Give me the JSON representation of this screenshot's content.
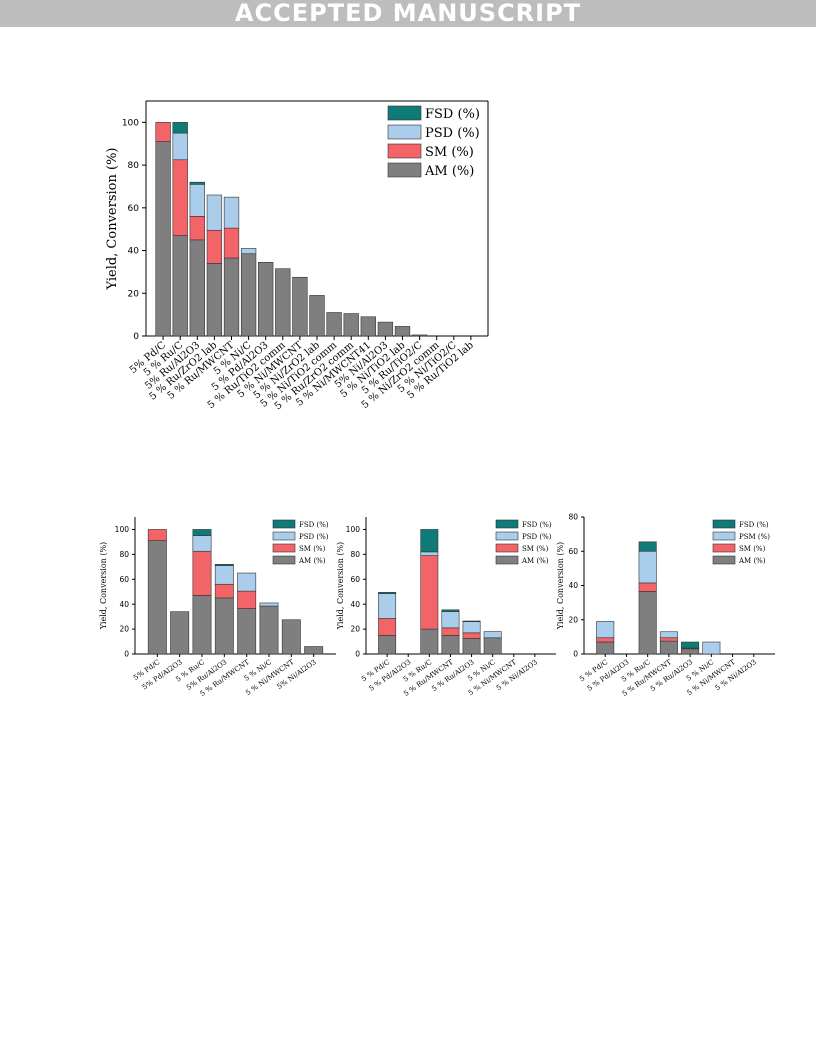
{
  "header": {
    "banner": "ACCEPTED MANUSCRIPT"
  },
  "colors": {
    "FSD": "#0e7b78",
    "PSD": "#a9cdea",
    "SM": "#f26468",
    "AM": "#7f7f7f"
  },
  "chart_data": [
    {
      "type": "bar",
      "stacked": true,
      "ylabel": "Yield, Conversion (%)",
      "ylim": [
        0,
        110
      ],
      "yticks": [
        "0",
        "20",
        "40",
        "60",
        "80",
        "100"
      ],
      "legend_position": "top-right",
      "categories": [
        "5% Pd/C",
        "5 % Ru/C",
        "5% Ru/Al2O3",
        "5 % Ru/ZrO2 lab",
        "5 % Ru/MWCNT",
        "5 % Ni/C",
        "5 % Pd/Al2O3",
        "5 % Ru/TiO2 comm",
        "5 % Ni/MWCNT",
        "5 % Ni/ZrO2 lab",
        "5 % Ni/TiO2 comm",
        "5 % Ru/ZrO2 comm",
        "5 % Ni/MWCNT41",
        "5% Ni/Al2O3",
        "5 % Ni/TiO2 lab",
        "5 % Ru/TiO2/C",
        "5 % Ni/ZrO2 comm",
        "5 % Ni/TiO2/C",
        "5 % Ru/TiO2 lab"
      ],
      "series": [
        {
          "name": "AM (%)",
          "values": [
            91,
            47,
            45,
            34,
            36.5,
            38.5,
            34.5,
            31.5,
            27.5,
            19,
            11,
            10.5,
            9,
            6.5,
            4.5,
            0.5,
            0,
            0,
            0
          ]
        },
        {
          "name": "SM (%)",
          "values": [
            9,
            35.5,
            11,
            15.5,
            14,
            0,
            0,
            0,
            0,
            0,
            0,
            0,
            0,
            0,
            0,
            0,
            0,
            0,
            0
          ]
        },
        {
          "name": "PSD (%)",
          "values": [
            0,
            12.5,
            15,
            16.5,
            14.5,
            2.5,
            0,
            0,
            0,
            0,
            0,
            0,
            0,
            0,
            0,
            0,
            0,
            0,
            0
          ]
        },
        {
          "name": "FSD (%)",
          "values": [
            0,
            5,
            1,
            0,
            0,
            0,
            0,
            0,
            0,
            0,
            0,
            0,
            0,
            0,
            0,
            0,
            0,
            0,
            0
          ]
        }
      ]
    },
    {
      "type": "bar",
      "stacked": true,
      "ylabel": "Yield, Conversion (%)",
      "ylim": [
        0,
        110
      ],
      "yticks": [
        "0",
        "20",
        "40",
        "60",
        "80",
        "100"
      ],
      "legend_position": "top-right",
      "categories": [
        "5% Pd/C",
        "5% Pd/Al2O3",
        "5 % Ru/C",
        "5% Ru/Al2O3",
        "5 % Ru/MWCNT",
        "5 % Ni/C",
        "5 % Ni/MWCNT",
        "5% Ni/Al2O3"
      ],
      "series": [
        {
          "name": "AM (%)",
          "values": [
            91,
            34,
            47,
            45,
            36.5,
            38.5,
            27.5,
            6
          ]
        },
        {
          "name": "SM (%)",
          "values": [
            9,
            0,
            35.5,
            11,
            14,
            0,
            0,
            0
          ]
        },
        {
          "name": "PSD (%)",
          "values": [
            0,
            0,
            12.5,
            15,
            14.5,
            2.5,
            0,
            0
          ]
        },
        {
          "name": "FSD (%)",
          "values": [
            0,
            0,
            5,
            1,
            0,
            0,
            0,
            0
          ]
        }
      ]
    },
    {
      "type": "bar",
      "stacked": true,
      "ylabel": "Yield, Conversion (%)",
      "ylim": [
        0,
        110
      ],
      "yticks": [
        "0",
        "20",
        "40",
        "60",
        "80",
        "100"
      ],
      "legend_position": "top-right",
      "categories": [
        "5 % Pd/C",
        "5 % Pd/Al2O3",
        "5 % Ru/C",
        "5 % Ru/MWCNT",
        "5 % Ru/Al2O3",
        "5 % Ni/C",
        "5 % Ni/MWCNT",
        "5 % Ni/Al2O3"
      ],
      "series": [
        {
          "name": "AM (%)",
          "values": [
            15,
            0,
            20,
            15,
            12.5,
            13,
            0,
            0
          ]
        },
        {
          "name": "SM (%)",
          "values": [
            13.5,
            0,
            59,
            6,
            4.5,
            0,
            0,
            0
          ]
        },
        {
          "name": "PSD (%)",
          "values": [
            20,
            0,
            3,
            13,
            9,
            5,
            0,
            0
          ]
        },
        {
          "name": "FSD (%)",
          "values": [
            1,
            0,
            18,
            1.5,
            0.5,
            0,
            0,
            0
          ]
        }
      ]
    },
    {
      "type": "bar",
      "stacked": true,
      "ylabel": "Yield, Conversion (%)",
      "ylim": [
        0,
        80
      ],
      "yticks": [
        "0",
        "20",
        "40",
        "60",
        "80"
      ],
      "legend_position": "top-right",
      "categories": [
        "5 % Pd/C",
        "5 % Pd/Al2O3",
        "5 % Ru/C",
        "5 % Ru/MWCNT",
        "5 % Ru/Al2O3",
        "5 % Ni/C",
        "5 % Ni/MWCNT",
        "5 % Ni/Al2O3"
      ],
      "series": [
        {
          "name": "AM (%)",
          "values": [
            7,
            0,
            36.5,
            7.5,
            3,
            0,
            0,
            0
          ]
        },
        {
          "name": "SM (%)",
          "values": [
            2.5,
            0,
            5,
            2,
            0.5,
            0,
            0,
            0
          ]
        },
        {
          "name": "PSM (%)",
          "values": [
            9.5,
            0,
            18.5,
            3.5,
            0,
            7,
            0,
            0
          ]
        },
        {
          "name": "FSD (%)",
          "values": [
            0,
            0,
            5.5,
            0,
            3.5,
            0,
            0,
            0
          ]
        }
      ]
    }
  ]
}
